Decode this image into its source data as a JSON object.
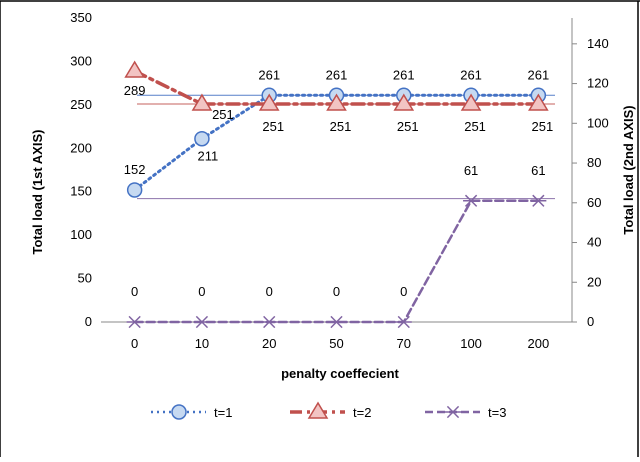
{
  "chart_data": {
    "type": "line",
    "title": "",
    "xlabel": "penalty coeffecient",
    "ylabel": "Total load (1st AXIS)",
    "y2label": "Total load (2nd AXIS)",
    "categories": [
      "0",
      "10",
      "20",
      "50",
      "70",
      "100",
      "200"
    ],
    "ylim": [
      0,
      350
    ],
    "yticks": [
      0,
      50,
      100,
      150,
      200,
      250,
      300,
      350
    ],
    "y2lim": [
      0,
      150
    ],
    "y2ticks": [
      0,
      20,
      40,
      60,
      80,
      100,
      120,
      140
    ],
    "grid": false,
    "legend_position": "bottom",
    "series": [
      {
        "name": "t=1",
        "axis": "primary",
        "values": [
          152,
          211,
          261,
          261,
          261,
          261,
          261
        ],
        "labels": [
          "152",
          "211",
          "261",
          "261",
          "261",
          "261",
          "261"
        ],
        "color": "#4472c4",
        "style": "dotted",
        "marker": "circle"
      },
      {
        "name": "t=2",
        "axis": "primary",
        "values": [
          289,
          251,
          251,
          251,
          251,
          251,
          251
        ],
        "labels": [
          "289",
          "251",
          "251",
          "251",
          "251",
          "251",
          "251"
        ],
        "color": "#c0504d",
        "style": "dash-dot",
        "marker": "triangle"
      },
      {
        "name": "t=3",
        "axis": "secondary",
        "values": [
          0,
          0,
          0,
          0,
          0,
          61,
          61
        ],
        "labels": [
          "0",
          "0",
          "0",
          "0",
          "0",
          "61",
          "61"
        ],
        "color": "#8064a2",
        "style": "dashed",
        "marker": "star"
      }
    ],
    "reference_lines": [
      {
        "axis": "primary",
        "value": 261,
        "color": "#4472c4"
      },
      {
        "axis": "primary",
        "value": 251,
        "color": "#c0504d"
      },
      {
        "axis": "primary",
        "value": 142,
        "color": "#8064a2"
      }
    ]
  }
}
